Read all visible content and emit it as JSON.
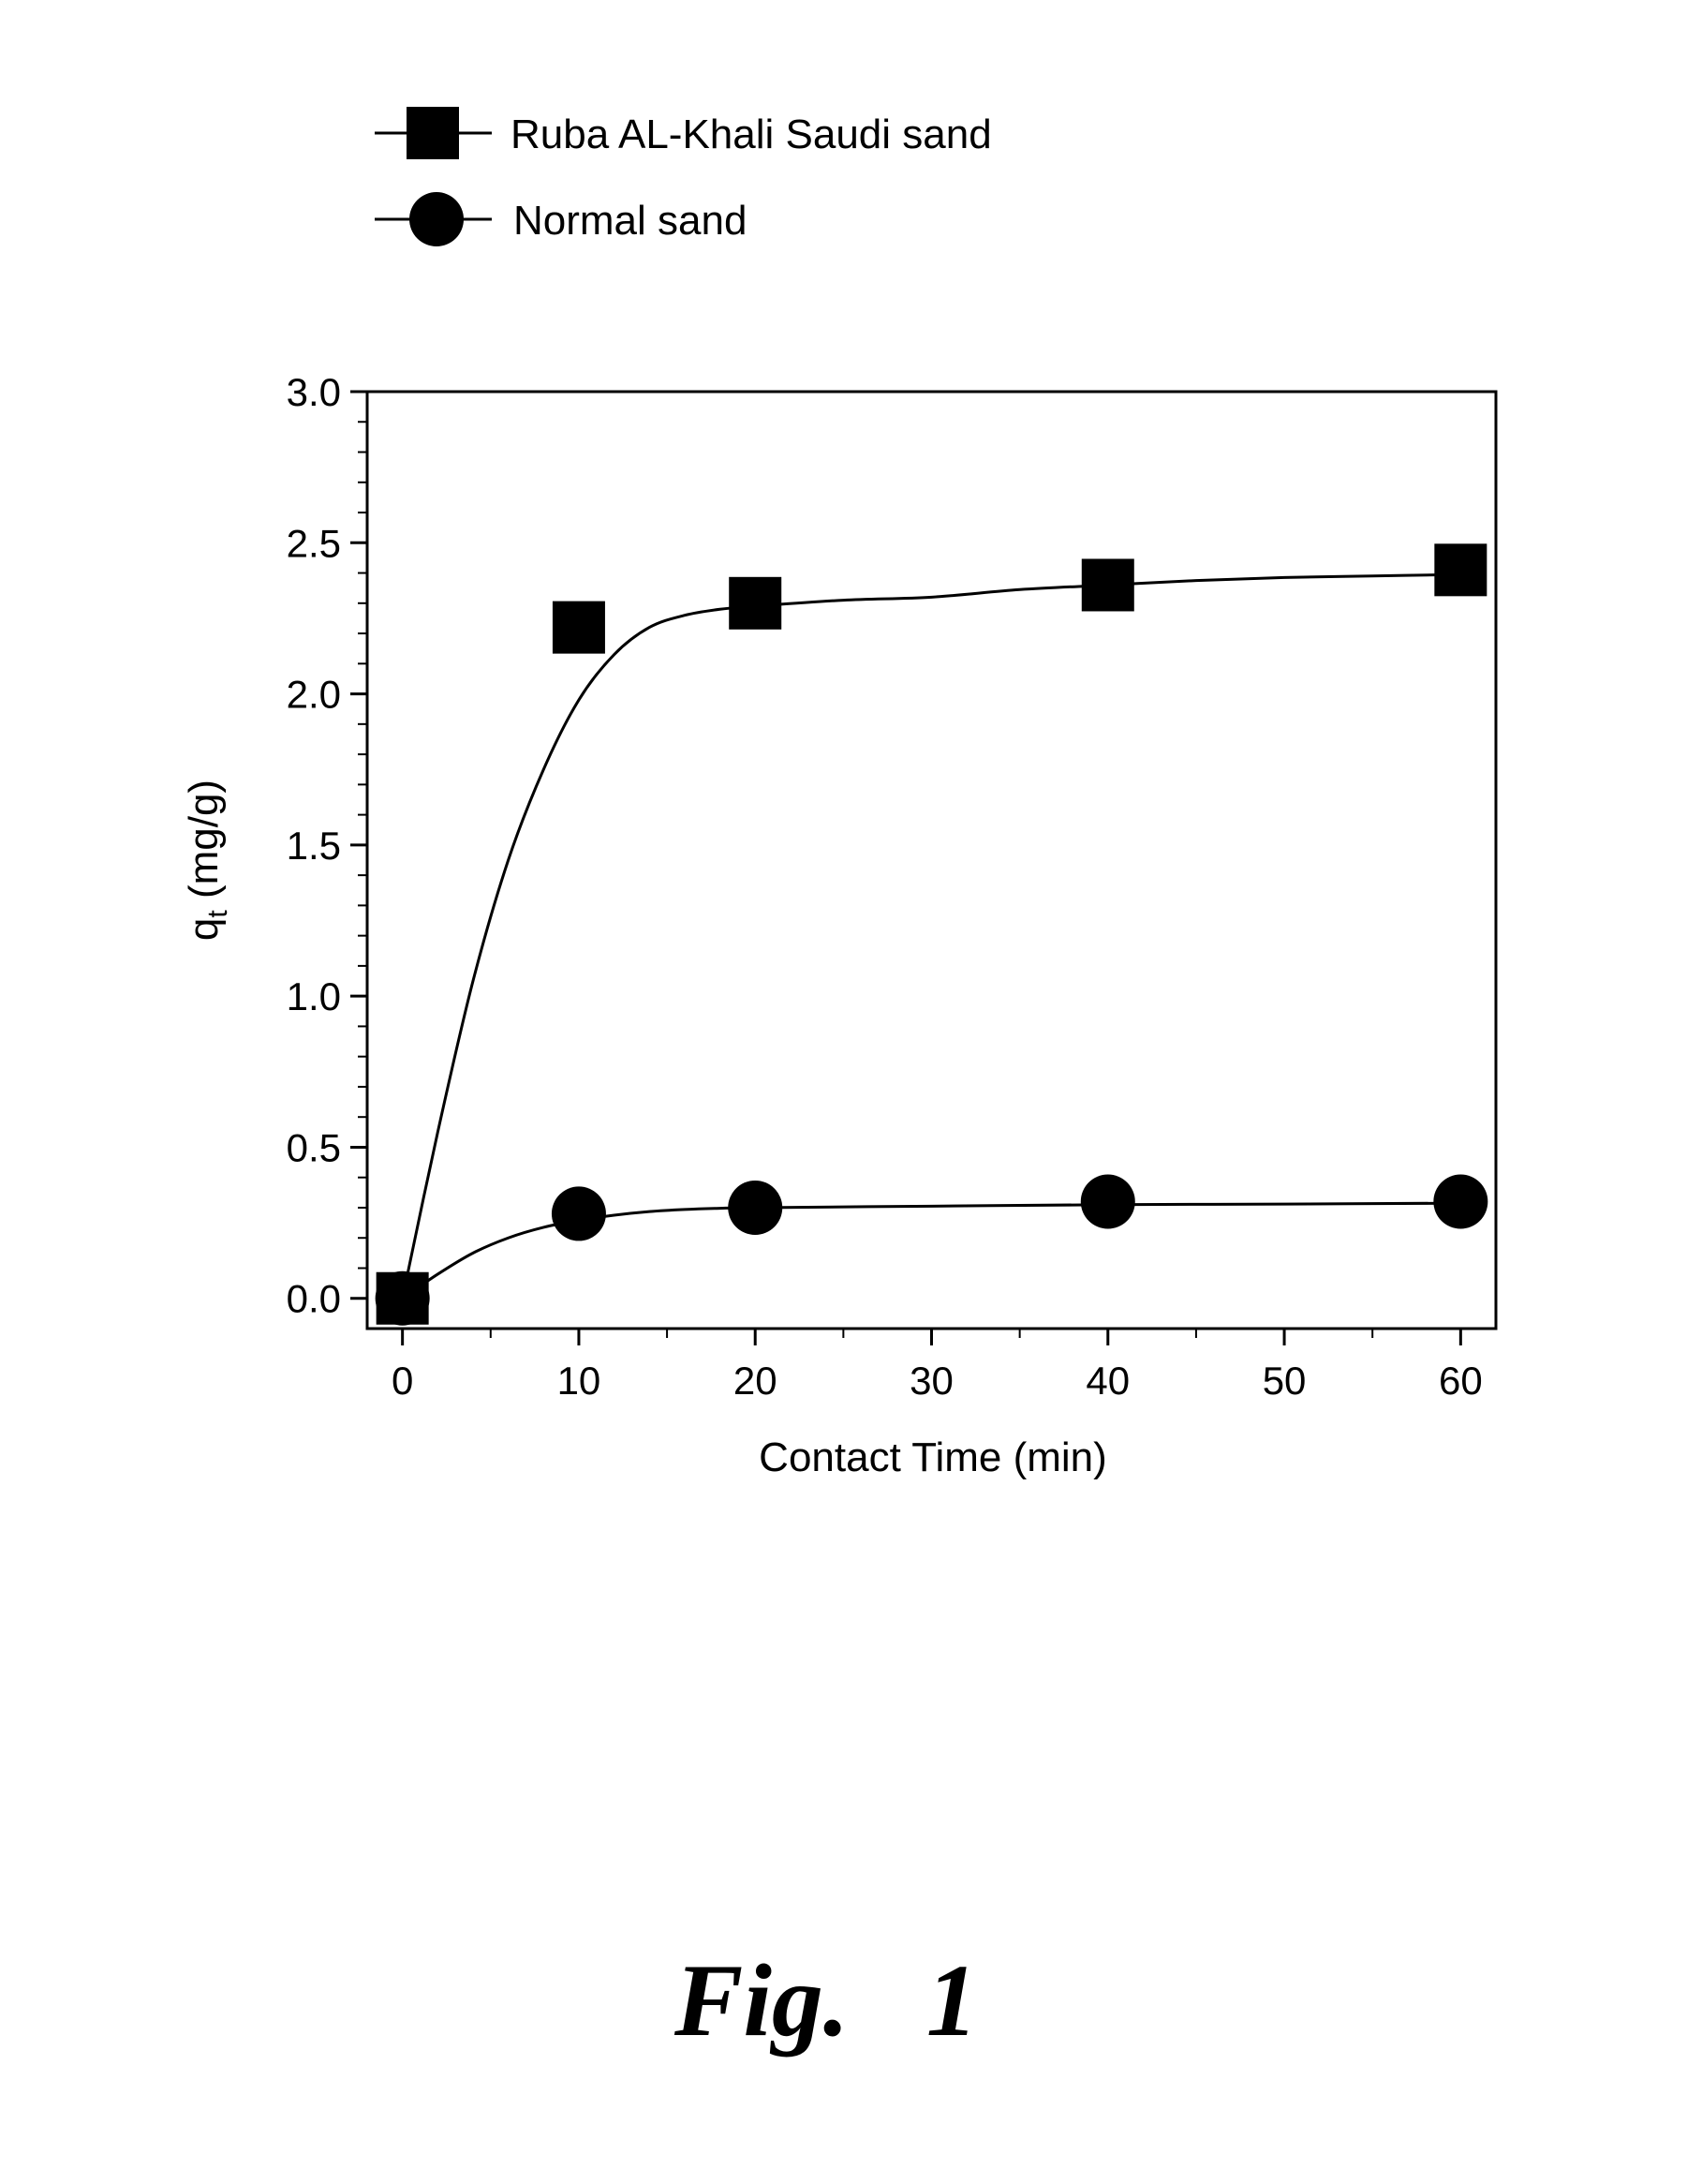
{
  "chart_data": {
    "type": "line",
    "xlabel": "Contact Time (min)",
    "ylabel": "q",
    "ylabel_sub": "t",
    "ylabel_unit": " (mg/g)",
    "xlim": [
      -2,
      62
    ],
    "ylim": [
      -0.1,
      3.0
    ],
    "x_ticks": [
      0,
      10,
      20,
      30,
      40,
      50,
      60
    ],
    "y_ticks": [
      0.0,
      0.5,
      1.0,
      1.5,
      2.0,
      2.5,
      3.0
    ],
    "x_tick_labels": [
      "0",
      "10",
      "20",
      "30",
      "40",
      "50",
      "60"
    ],
    "y_tick_labels": [
      "0.0",
      "0.5",
      "1.0",
      "1.5",
      "2.0",
      "2.5",
      "3.0"
    ],
    "grid": false,
    "legend_position": "top-left, above plot",
    "series": [
      {
        "name": "Ruba AL-Khali Saudi sand",
        "marker": "square",
        "x": [
          0,
          10,
          20,
          40,
          60
        ],
        "y": [
          0.0,
          2.22,
          2.3,
          2.36,
          2.41
        ],
        "fit": [
          [
            0,
            0.0
          ],
          [
            2,
            0.55
          ],
          [
            4,
            1.05
          ],
          [
            6,
            1.45
          ],
          [
            8,
            1.75
          ],
          [
            10,
            1.98
          ],
          [
            12,
            2.13
          ],
          [
            14,
            2.22
          ],
          [
            16,
            2.26
          ],
          [
            18,
            2.28
          ],
          [
            20,
            2.29
          ],
          [
            25,
            2.31
          ],
          [
            30,
            2.32
          ],
          [
            35,
            2.345
          ],
          [
            40,
            2.36
          ],
          [
            45,
            2.375
          ],
          [
            50,
            2.385
          ],
          [
            55,
            2.39
          ],
          [
            60,
            2.395
          ]
        ]
      },
      {
        "name": "Normal sand",
        "marker": "circle",
        "x": [
          0,
          10,
          20,
          40,
          60
        ],
        "y": [
          0.0,
          0.28,
          0.3,
          0.32,
          0.32
        ],
        "fit": [
          [
            0,
            0.0
          ],
          [
            2,
            0.08
          ],
          [
            4,
            0.15
          ],
          [
            6,
            0.2
          ],
          [
            8,
            0.235
          ],
          [
            10,
            0.258
          ],
          [
            12,
            0.275
          ],
          [
            14,
            0.287
          ],
          [
            16,
            0.294
          ],
          [
            18,
            0.298
          ],
          [
            20,
            0.3
          ],
          [
            30,
            0.305
          ],
          [
            40,
            0.31
          ],
          [
            50,
            0.312
          ],
          [
            60,
            0.315
          ]
        ]
      }
    ]
  },
  "caption": "Fig.   1"
}
